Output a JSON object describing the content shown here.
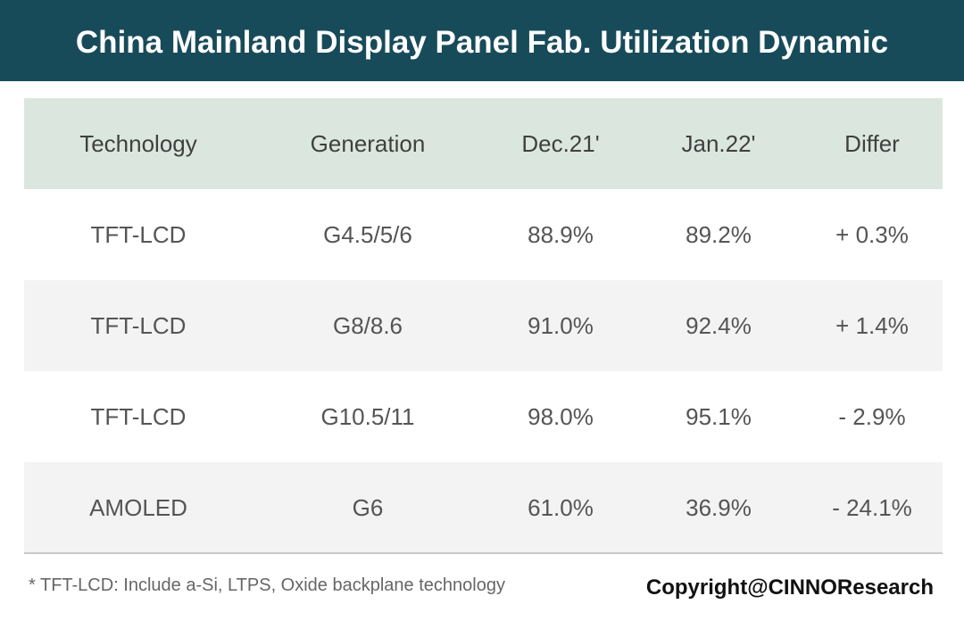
{
  "header": {
    "title": "China Mainland Display Panel Fab. Utilization Dynamic"
  },
  "table": {
    "columns": [
      "Technology",
      "Generation",
      "Dec.21'",
      "Jan.22'",
      "Differ"
    ],
    "rows": [
      [
        "TFT-LCD",
        "G4.5/5/6",
        "88.9%",
        "89.2%",
        "+ 0.3%"
      ],
      [
        "TFT-LCD",
        "G8/8.6",
        "91.0%",
        "92.4%",
        "+ 1.4%"
      ],
      [
        "TFT-LCD",
        "G10.5/11",
        "98.0%",
        "95.1%",
        "- 2.9%"
      ],
      [
        "AMOLED",
        "G6",
        "61.0%",
        "36.9%",
        "- 24.1%"
      ]
    ]
  },
  "footnote": "* TFT-LCD: Include a-Si, LTPS, Oxide backplane technology",
  "copyright": "Copyright@CINNOResearch"
}
